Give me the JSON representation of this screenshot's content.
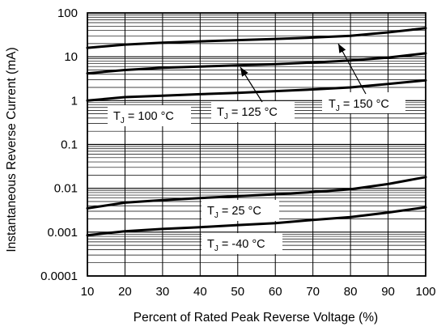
{
  "chart_data": {
    "type": "line",
    "xlabel": "Percent of Rated Peak Reverse Voltage (%)",
    "ylabel": "Instantaneous Reverse Current (mA)",
    "xlim": [
      10,
      100
    ],
    "ylim": [
      0.0001,
      100
    ],
    "y_scale": "log",
    "grid": true,
    "x_ticks": [
      "10",
      "20",
      "30",
      "40",
      "50",
      "60",
      "70",
      "80",
      "90",
      "100"
    ],
    "y_ticks": [
      "0.0001",
      "0.001",
      "0.01",
      "0.1",
      "1",
      "10",
      "100"
    ],
    "x": [
      10,
      20,
      30,
      40,
      50,
      60,
      70,
      80,
      90,
      100
    ],
    "series": [
      {
        "name": "TJ = 150 °C",
        "label_main": "T",
        "label_sub": "J",
        "label_rest": " = 150 °C",
        "values": [
          16,
          19,
          21,
          22.5,
          24,
          25.5,
          27.5,
          30,
          36,
          45
        ]
      },
      {
        "name": "TJ = 125 °C",
        "label_main": "T",
        "label_sub": "J",
        "label_rest": " = 125 °C",
        "values": [
          4.2,
          5,
          5.6,
          6,
          6.4,
          6.8,
          7.4,
          8.2,
          9.6,
          12
        ]
      },
      {
        "name": "TJ = 100 °C",
        "label_main": "T",
        "label_sub": "J",
        "label_rest": " = 100 °C",
        "values": [
          1.0,
          1.2,
          1.3,
          1.4,
          1.5,
          1.65,
          1.8,
          2.0,
          2.4,
          2.9
        ]
      },
      {
        "name": "TJ = 25 °C",
        "label_main": "T",
        "label_sub": "J",
        "label_rest": " = 25 °C",
        "values": [
          0.0035,
          0.0047,
          0.0054,
          0.006,
          0.0066,
          0.0073,
          0.0082,
          0.0095,
          0.0125,
          0.018
        ]
      },
      {
        "name": "TJ = -40 °C",
        "label_main": "T",
        "label_sub": "J",
        "label_rest": " = -40 °C",
        "values": [
          0.00085,
          0.00105,
          0.00118,
          0.0013,
          0.00145,
          0.0016,
          0.0019,
          0.0022,
          0.0028,
          0.0037
        ]
      }
    ]
  }
}
